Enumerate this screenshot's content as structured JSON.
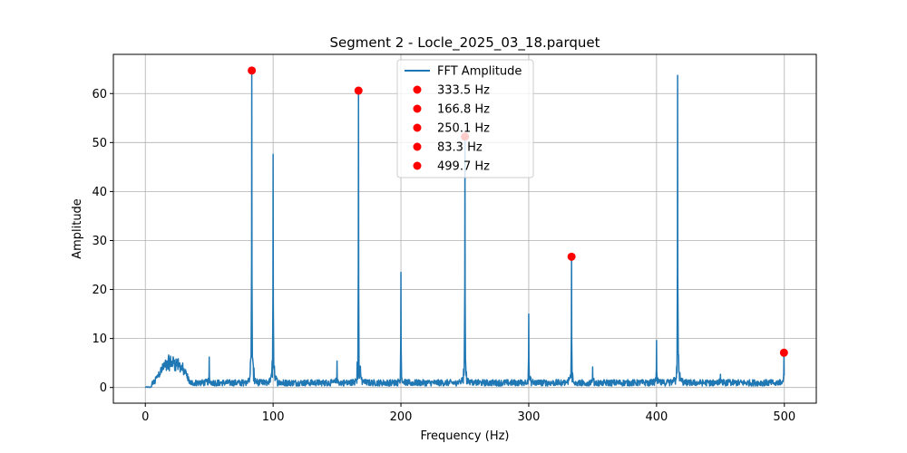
{
  "chart_data": {
    "type": "line",
    "title": "Segment 2 - Locle_2025_03_18.parquet",
    "xlabel": "Frequency (Hz)",
    "ylabel": "Amplitude",
    "xlim": [
      -25,
      525
    ],
    "ylim": [
      -3.2,
      68
    ],
    "xticks": [
      0,
      100,
      200,
      300,
      400,
      500
    ],
    "yticks": [
      0,
      10,
      20,
      30,
      40,
      50,
      60
    ],
    "grid": true,
    "legend_position": "top-center",
    "colors": {
      "line": "#1f77b4",
      "peaks": "#ff0000"
    },
    "series": [
      {
        "name": "FFT Amplitude",
        "baseline": {
          "x_range": [
            0,
            500
          ],
          "noise_floor": 1.2,
          "low_freq_bump": {
            "x": [
              7,
              35
            ],
            "amplitude": 5.5
          },
          "zero_below_hz": 5
        },
        "peaks": [
          {
            "x": 50,
            "y": 6.2
          },
          {
            "x": 83.3,
            "y": 64.7
          },
          {
            "x": 100,
            "y": 47.6
          },
          {
            "x": 150,
            "y": 5.4
          },
          {
            "x": 166.8,
            "y": 60.6
          },
          {
            "x": 200,
            "y": 23.5
          },
          {
            "x": 250.1,
            "y": 51.2
          },
          {
            "x": 300,
            "y": 15.0
          },
          {
            "x": 333.5,
            "y": 26.7
          },
          {
            "x": 350,
            "y": 4.2
          },
          {
            "x": 400,
            "y": 9.6
          },
          {
            "x": 416.5,
            "y": 63.7
          },
          {
            "x": 450,
            "y": 2.7
          },
          {
            "x": 499.7,
            "y": 7.1
          }
        ]
      },
      {
        "name": "333.5 Hz",
        "marker": "circle",
        "points": [
          {
            "x": 333.5,
            "y": 26.7
          }
        ]
      },
      {
        "name": "166.8 Hz",
        "marker": "circle",
        "points": [
          {
            "x": 166.8,
            "y": 60.6
          }
        ]
      },
      {
        "name": "250.1 Hz",
        "marker": "circle",
        "points": [
          {
            "x": 250.1,
            "y": 51.2
          }
        ]
      },
      {
        "name": "83.3 Hz",
        "marker": "circle",
        "points": [
          {
            "x": 83.3,
            "y": 64.7
          }
        ]
      },
      {
        "name": "499.7 Hz",
        "marker": "circle",
        "points": [
          {
            "x": 499.7,
            "y": 7.1
          }
        ]
      }
    ]
  }
}
